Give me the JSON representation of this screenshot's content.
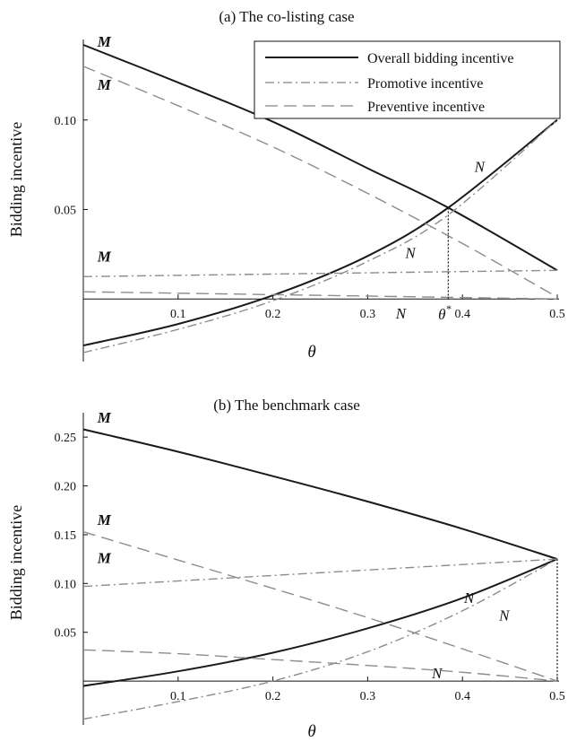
{
  "chart_data": [
    {
      "type": "line",
      "title": "(a) The co-listing case",
      "xlabel": "θ",
      "ylabel": "Bidding incentive",
      "xlim": [
        0,
        0.5
      ],
      "ylim": [
        -0.035,
        0.145
      ],
      "xticks": [
        0.1,
        0.2,
        0.3,
        0.4,
        0.5
      ],
      "xtick_labels": [
        "0.1",
        "0.2",
        "0.3",
        "0.4",
        "0.5"
      ],
      "yticks": [
        0.05,
        0.1
      ],
      "ytick_labels": [
        "0.05",
        "0.10"
      ],
      "grid": false,
      "legend": {
        "placement": "top-right",
        "entries": [
          "Overall bidding incentive",
          "Promotive incentive",
          "Preventive incentive"
        ]
      },
      "series": [
        {
          "name": "Overall bidding incentive",
          "label": "M",
          "style": "solid",
          "x": [
            0,
            0.1,
            0.2,
            0.3,
            0.385,
            0.5
          ],
          "y": [
            0.142,
            0.121,
            0.099,
            0.073,
            0.051,
            0.016
          ]
        },
        {
          "name": "Overall bidding incentive",
          "label": "N",
          "style": "solid",
          "x": [
            0,
            0.1,
            0.2,
            0.3,
            0.385,
            0.5
          ],
          "y": [
            -0.026,
            -0.014,
            0.002,
            0.024,
            0.051,
            0.1
          ]
        },
        {
          "name": "Promotive incentive",
          "label": "M",
          "style": "dashdot",
          "x": [
            0,
            0.5
          ],
          "y": [
            0.0125,
            0.016
          ]
        },
        {
          "name": "Promotive incentive",
          "label": "N",
          "style": "dashdot",
          "x": [
            0,
            0.1,
            0.2,
            0.3,
            0.385,
            0.5
          ],
          "y": [
            -0.03,
            -0.017,
            -0.001,
            0.021,
            0.047,
            0.1
          ]
        },
        {
          "name": "Preventive incentive",
          "label": "M",
          "style": "dashed",
          "x": [
            0,
            0.1,
            0.2,
            0.3,
            0.4,
            0.5
          ],
          "y": [
            0.13,
            0.108,
            0.085,
            0.059,
            0.031,
            0.001
          ]
        },
        {
          "name": "Preventive incentive",
          "label": "N",
          "style": "dashed",
          "x": [
            0,
            0.5
          ],
          "y": [
            0.004,
            0.0
          ]
        }
      ],
      "marker": {
        "x": 0.385,
        "y": 0.051,
        "label": "θ*"
      },
      "annotations": [
        {
          "text": "M",
          "x": 0.022,
          "y": 0.141
        },
        {
          "text": "M",
          "x": 0.022,
          "y": 0.117
        },
        {
          "text": "M",
          "x": 0.022,
          "y": 0.021
        },
        {
          "text": "N",
          "x": 0.418,
          "y": 0.071
        },
        {
          "text": "N",
          "x": 0.345,
          "y": 0.023
        },
        {
          "text": "N",
          "x": 0.335,
          "y": -0.011
        }
      ]
    },
    {
      "type": "line",
      "title": "(b) The benchmark case",
      "xlabel": "θ",
      "ylabel": "Bidding incentive",
      "xlim": [
        0,
        0.5
      ],
      "ylim": [
        -0.045,
        0.275
      ],
      "xticks": [
        0.1,
        0.2,
        0.3,
        0.4,
        0.5
      ],
      "xtick_labels": [
        "0.1",
        "0.2",
        "0.3",
        "0.4",
        "0.5"
      ],
      "yticks": [
        0.05,
        0.1,
        0.15,
        0.2,
        0.25
      ],
      "ytick_labels": [
        "0.05",
        "0.10",
        "0.15",
        "0.20",
        "0.25"
      ],
      "grid": false,
      "series": [
        {
          "name": "Overall bidding incentive",
          "label": "M",
          "style": "solid",
          "x": [
            0,
            0.1,
            0.2,
            0.3,
            0.4,
            0.5
          ],
          "y": [
            0.258,
            0.235,
            0.21,
            0.184,
            0.156,
            0.125
          ]
        },
        {
          "name": "Overall bidding incentive",
          "label": "N",
          "style": "solid",
          "x": [
            0,
            0.1,
            0.2,
            0.3,
            0.4,
            0.5
          ],
          "y": [
            -0.005,
            0.01,
            0.029,
            0.054,
            0.085,
            0.125
          ]
        },
        {
          "name": "Promotive incentive",
          "label": "M",
          "style": "dashdot",
          "x": [
            0,
            0.5
          ],
          "y": [
            0.097,
            0.125
          ]
        },
        {
          "name": "Promotive incentive",
          "label": "N",
          "style": "dashdot",
          "x": [
            0,
            0.1,
            0.2,
            0.3,
            0.4,
            0.5
          ],
          "y": [
            -0.039,
            -0.021,
            0.0,
            0.03,
            0.072,
            0.125
          ]
        },
        {
          "name": "Preventive incentive",
          "label": "M",
          "style": "dashed",
          "x": [
            0,
            0.1,
            0.2,
            0.3,
            0.4,
            0.5
          ],
          "y": [
            0.153,
            0.124,
            0.095,
            0.065,
            0.033,
            0.0
          ]
        },
        {
          "name": "Preventive incentive",
          "label": "N",
          "style": "dashed",
          "x": [
            0,
            0.1,
            0.2,
            0.3,
            0.4,
            0.5
          ],
          "y": [
            0.032,
            0.028,
            0.022,
            0.016,
            0.009,
            0.0
          ]
        }
      ],
      "marker": {
        "x": 0.5,
        "y": 0.125
      },
      "annotations": [
        {
          "text": "M",
          "x": 0.022,
          "y": 0.265
        },
        {
          "text": "M",
          "x": 0.022,
          "y": 0.16
        },
        {
          "text": "M",
          "x": 0.022,
          "y": 0.121
        },
        {
          "text": "N",
          "x": 0.407,
          "y": 0.08
        },
        {
          "text": "N",
          "x": 0.444,
          "y": 0.062
        },
        {
          "text": "N",
          "x": 0.373,
          "y": 0.003
        }
      ]
    }
  ]
}
